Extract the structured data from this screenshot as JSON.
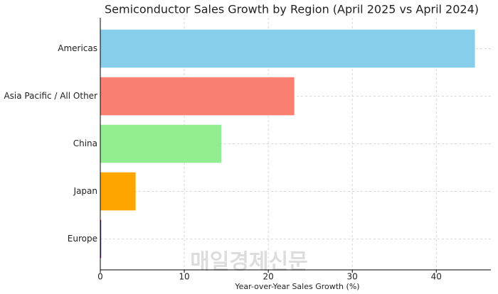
{
  "chart_data": {
    "type": "hbar",
    "title": "Semiconductor Sales Growth by Region (April 2025 vs April 2024)",
    "x_label": "Year-over-Year Sales Growth (%)",
    "categories": [
      "Americas",
      "Asia Pacific / All Other",
      "China",
      "Japan",
      "Europe"
    ],
    "values": [
      44.6,
      23.1,
      14.4,
      4.2,
      0.1
    ],
    "colors": [
      "#87ceeb",
      "#fa8072",
      "#90ee90",
      "#ffa500",
      "#800080"
    ],
    "xlim": [
      0,
      46.5
    ],
    "xticks": [
      0,
      10,
      20,
      30,
      40
    ],
    "grid": true,
    "watermark": "매일경제신문"
  }
}
